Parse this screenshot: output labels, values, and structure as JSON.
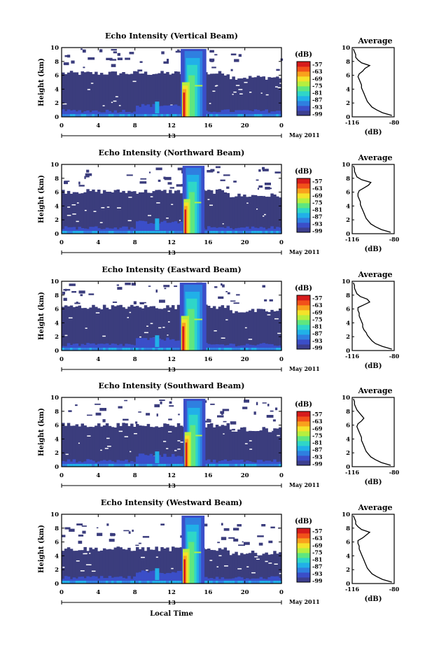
{
  "figure": {
    "x_axis_label": "Local Time",
    "date_label": "May 2011",
    "day_marker": "13",
    "colorbar_unit": "(dB)",
    "colorbar_ticks": [
      "-57",
      "-63",
      "-69",
      "-75",
      "-81",
      "-87",
      "-93",
      "-99"
    ],
    "colorbar_colors": [
      "#3d3f8f",
      "#3b4ec8",
      "#2f7fe0",
      "#21b0e8",
      "#2fd6c8",
      "#5fe67f",
      "#b6ef3f",
      "#f5e22a",
      "#f9a11d",
      "#f2511a",
      "#d61b1b"
    ],
    "background_color": "#3b3d7d",
    "average_title": "Average",
    "average_xlabel": "(dB)"
  },
  "chart_data": [
    {
      "type": "heatmap",
      "title": "Echo Intensity (Vertical Beam)",
      "xlabel": "",
      "ylabel": "Height (km)",
      "x_ticks": [
        "0",
        "4",
        "8",
        "12",
        "16",
        "20",
        "0"
      ],
      "y_ticks": [
        "0",
        "2",
        "4",
        "6",
        "8",
        "10"
      ],
      "xlim": [
        0,
        24
      ],
      "ylim": [
        0,
        10
      ],
      "clim": [
        -99,
        -57
      ],
      "cloud_top_km": 6.3,
      "storm_start_hr": 13.0,
      "storm_end_hr": 15.8,
      "average": {
        "x_ticks": [
          "-116",
          "-80"
        ],
        "xlim": [
          -116,
          -80
        ],
        "ylim": [
          0,
          10
        ],
        "height_km": [
          0.2,
          0.6,
          1.0,
          1.4,
          1.8,
          2.2,
          2.6,
          3.0,
          3.4,
          3.8,
          4.2,
          4.6,
          5.0,
          5.4,
          5.8,
          6.2,
          6.6,
          7.0,
          7.4,
          7.8,
          8.2,
          8.6,
          9.0,
          9.4,
          9.8
        ],
        "db": [
          -82,
          -90,
          -95,
          -99,
          -101,
          -103,
          -104,
          -105,
          -106,
          -107,
          -108,
          -108,
          -109,
          -110,
          -111,
          -110,
          -107,
          -105,
          -101,
          -108,
          -111,
          -113,
          -113,
          -114,
          -115
        ]
      }
    },
    {
      "type": "heatmap",
      "title": "Echo Intensity (Northward Beam)",
      "xlabel": "",
      "ylabel": "Height (km)",
      "x_ticks": [
        "0",
        "4",
        "8",
        "12",
        "16",
        "20",
        "0"
      ],
      "y_ticks": [
        "0",
        "2",
        "4",
        "6",
        "8",
        "10"
      ],
      "xlim": [
        0,
        24
      ],
      "ylim": [
        0,
        10
      ],
      "clim": [
        -99,
        -57
      ],
      "cloud_top_km": 6.1,
      "storm_start_hr": 13.2,
      "storm_end_hr": 15.6,
      "average": {
        "x_ticks": [
          "-116",
          "-80"
        ],
        "xlim": [
          -116,
          -80
        ],
        "ylim": [
          0,
          10
        ],
        "height_km": [
          0.2,
          0.6,
          1.0,
          1.4,
          1.8,
          2.2,
          2.6,
          3.0,
          3.4,
          3.8,
          4.2,
          4.6,
          5.0,
          5.4,
          5.8,
          6.2,
          6.6,
          7.0,
          7.4,
          7.8,
          8.2,
          8.6,
          9.0,
          9.4,
          9.8
        ],
        "db": [
          -83,
          -91,
          -96,
          -100,
          -102,
          -104,
          -105,
          -106,
          -107,
          -108,
          -109,
          -109,
          -110,
          -111,
          -111,
          -110,
          -106,
          -102,
          -100,
          -108,
          -112,
          -113,
          -114,
          -114,
          -115
        ]
      }
    },
    {
      "type": "heatmap",
      "title": "Echo Intensity (Eastward Beam)",
      "xlabel": "",
      "ylabel": "Height (km)",
      "x_ticks": [
        "0",
        "4",
        "8",
        "12",
        "16",
        "20",
        "0"
      ],
      "y_ticks": [
        "0",
        "2",
        "4",
        "6",
        "8",
        "10"
      ],
      "xlim": [
        0,
        24
      ],
      "ylim": [
        0,
        10
      ],
      "clim": [
        -99,
        -57
      ],
      "cloud_top_km": 6.3,
      "storm_start_hr": 12.9,
      "storm_end_hr": 15.8,
      "average": {
        "x_ticks": [
          "-116",
          "-80"
        ],
        "xlim": [
          -116,
          -80
        ],
        "ylim": [
          0,
          10
        ],
        "height_km": [
          0.2,
          0.6,
          1.0,
          1.4,
          1.8,
          2.2,
          2.6,
          3.0,
          3.4,
          3.8,
          4.2,
          4.6,
          5.0,
          5.4,
          5.8,
          6.2,
          6.6,
          7.0,
          7.4,
          7.8,
          8.2,
          8.6,
          9.0,
          9.4,
          9.8
        ],
        "db": [
          -82,
          -90,
          -96,
          -99,
          -101,
          -103,
          -104,
          -106,
          -107,
          -107,
          -108,
          -109,
          -110,
          -110,
          -111,
          -111,
          -106,
          -101,
          -103,
          -109,
          -112,
          -113,
          -114,
          -114,
          -115
        ]
      }
    },
    {
      "type": "heatmap",
      "title": "Echo Intensity (Southward Beam)",
      "xlabel": "",
      "ylabel": "Height (km)",
      "x_ticks": [
        "0",
        "4",
        "8",
        "12",
        "16",
        "20",
        "0"
      ],
      "y_ticks": [
        "0",
        "2",
        "4",
        "6",
        "8",
        "10"
      ],
      "xlim": [
        0,
        24
      ],
      "ylim": [
        0,
        10
      ],
      "clim": [
        -99,
        -57
      ],
      "cloud_top_km": 6.0,
      "storm_start_hr": 13.3,
      "storm_end_hr": 15.7,
      "average": {
        "x_ticks": [
          "-116",
          "-80"
        ],
        "xlim": [
          -116,
          -80
        ],
        "ylim": [
          0,
          10
        ],
        "height_km": [
          0.2,
          0.6,
          1.0,
          1.4,
          1.8,
          2.2,
          2.6,
          3.0,
          3.4,
          3.8,
          4.2,
          4.6,
          5.0,
          5.4,
          5.8,
          6.2,
          6.6,
          7.0,
          7.4,
          7.8,
          8.2,
          8.6,
          9.0,
          9.4,
          9.8
        ],
        "db": [
          -83,
          -91,
          -96,
          -100,
          -102,
          -104,
          -105,
          -106,
          -107,
          -108,
          -108,
          -109,
          -110,
          -111,
          -112,
          -111,
          -108,
          -106,
          -108,
          -110,
          -112,
          -113,
          -114,
          -114,
          -115
        ]
      }
    },
    {
      "type": "heatmap",
      "title": "Echo Intensity (Westward Beam)",
      "xlabel": "Local Time",
      "ylabel": "Height (km)",
      "x_ticks": [
        "0",
        "4",
        "8",
        "12",
        "16",
        "20",
        "0"
      ],
      "y_ticks": [
        "0",
        "2",
        "4",
        "6",
        "8",
        "10"
      ],
      "xlim": [
        0,
        24
      ],
      "ylim": [
        0,
        10
      ],
      "clim": [
        -99,
        -57
      ],
      "cloud_top_km": 5.0,
      "storm_start_hr": 13.1,
      "storm_end_hr": 15.6,
      "average": {
        "x_ticks": [
          "-116",
          "-80"
        ],
        "xlim": [
          -116,
          -80
        ],
        "ylim": [
          0,
          10
        ],
        "height_km": [
          0.2,
          0.6,
          1.0,
          1.4,
          1.8,
          2.2,
          2.6,
          3.0,
          3.4,
          3.8,
          4.2,
          4.6,
          5.0,
          5.4,
          5.8,
          6.2,
          6.6,
          7.0,
          7.4,
          7.8,
          8.2,
          8.6,
          9.0,
          9.4,
          9.8
        ],
        "db": [
          -82,
          -90,
          -95,
          -99,
          -101,
          -103,
          -104,
          -105,
          -106,
          -107,
          -108,
          -109,
          -110,
          -110,
          -111,
          -111,
          -107,
          -104,
          -101,
          -108,
          -111,
          -113,
          -113,
          -114,
          -115
        ]
      }
    }
  ]
}
